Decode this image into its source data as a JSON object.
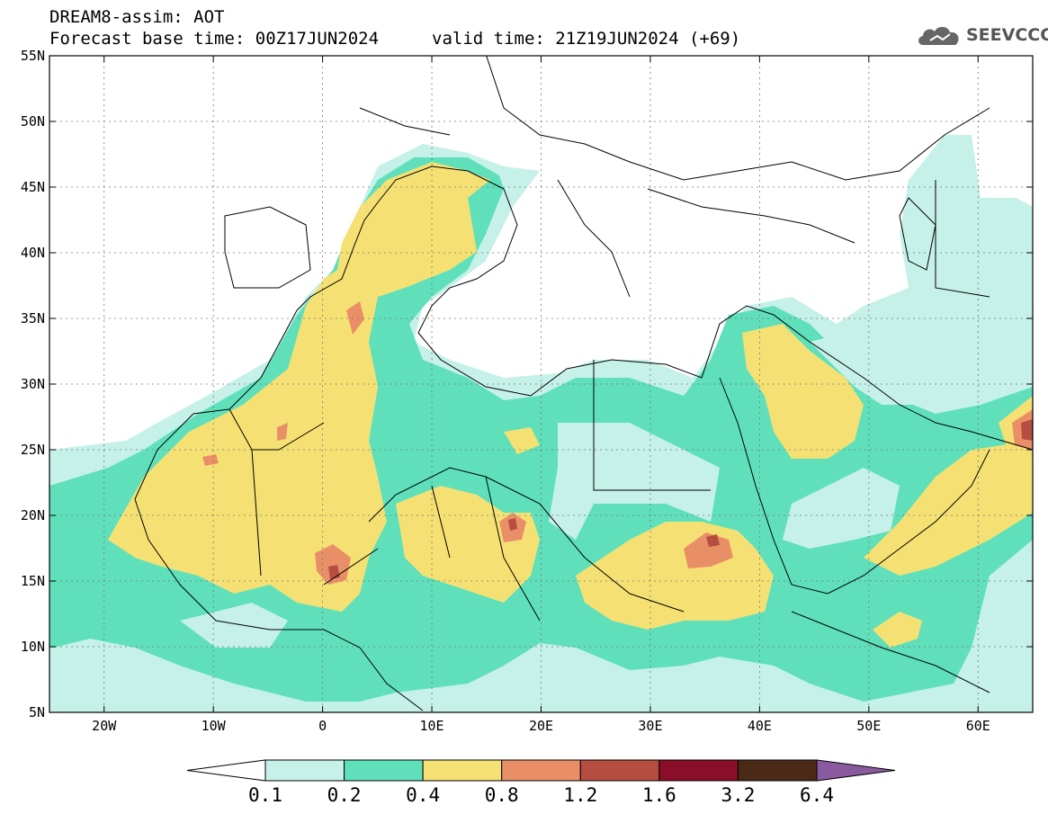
{
  "header": {
    "title": "DREAM8-assim: AOT",
    "base_time": "Forecast base time: 00Z17JUN2024",
    "valid_time": "valid time: 21Z19JUN2024 (+69)"
  },
  "logo": {
    "text": "SEEVCCC",
    "icon": "cloud-icon"
  },
  "map": {
    "lat_labels": [
      "55N",
      "50N",
      "45N",
      "40N",
      "35N",
      "30N",
      "25N",
      "20N",
      "15N",
      "10N",
      "5N"
    ],
    "lon_labels": [
      "20W",
      "10W",
      "0",
      "10E",
      "20E",
      "30E",
      "40E",
      "50E",
      "60E"
    ],
    "lat_values": [
      55,
      50,
      45,
      40,
      35,
      30,
      25,
      20,
      15,
      10,
      5
    ],
    "lon_values": [
      -20,
      -10,
      0,
      10,
      20,
      30,
      40,
      50,
      60
    ],
    "lon_range": [
      -25,
      65
    ],
    "lat_range": [
      5,
      55
    ],
    "grid": true,
    "variable": "AOT"
  },
  "colorbar": {
    "colors": [
      "#ffffff",
      "#c6f1e9",
      "#5fe0bb",
      "#f5e173",
      "#e98f68",
      "#b54d40",
      "#8a0e28",
      "#4a2a17",
      "#8a5aa0"
    ],
    "labels": [
      "0.1",
      "0.2",
      "0.4",
      "0.8",
      "1.2",
      "1.6",
      "3.2",
      "6.4"
    ]
  }
}
